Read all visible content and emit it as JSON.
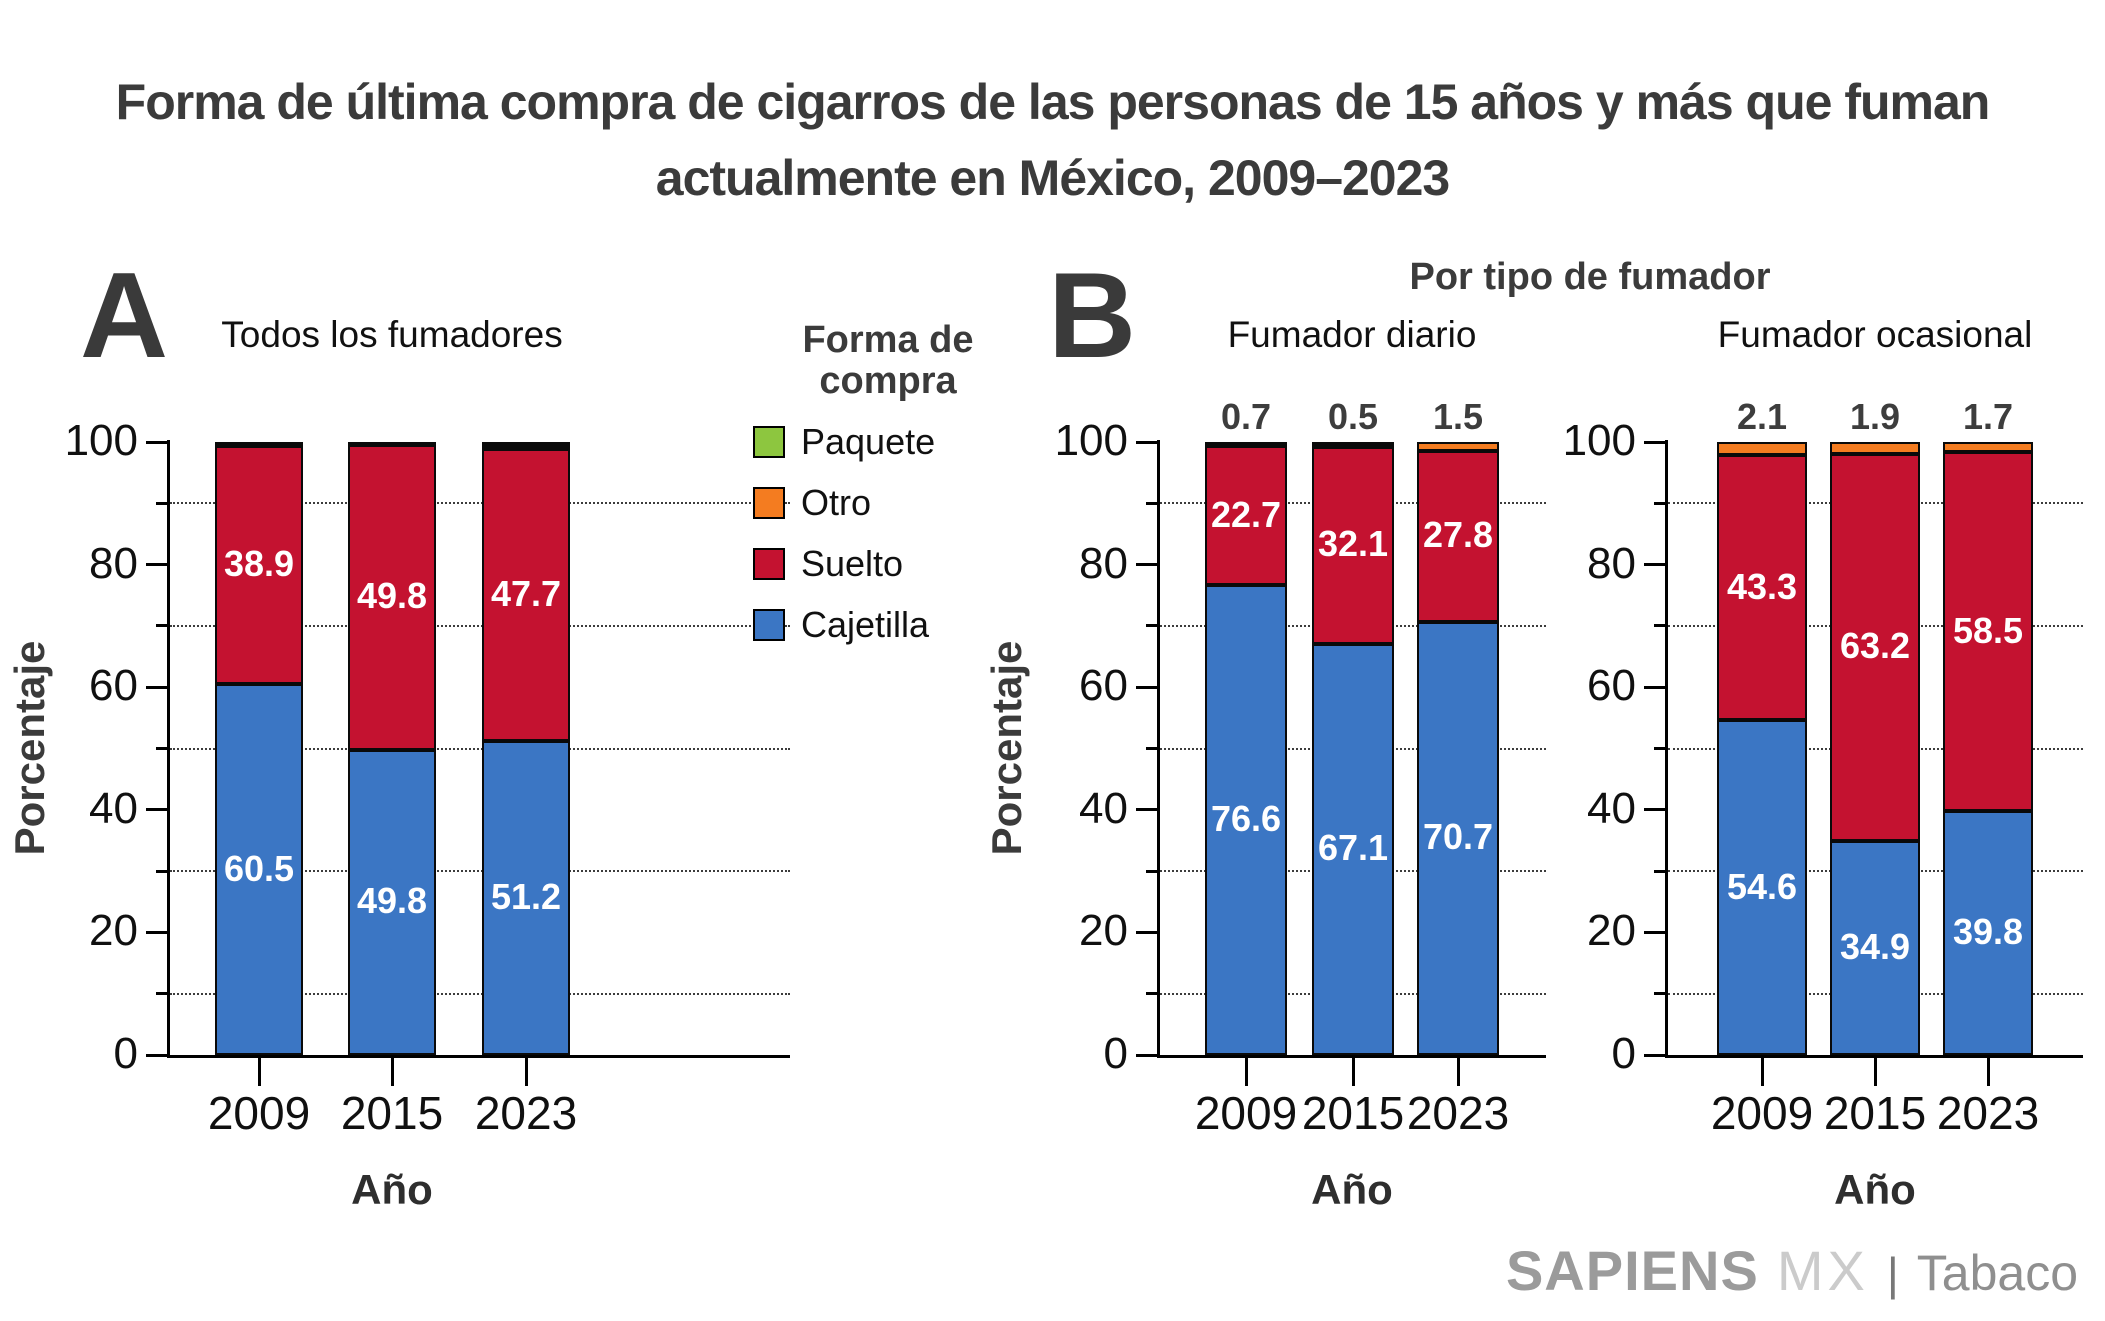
{
  "title": {
    "line1": "Forma de última compra de cigarros de las personas de 15 años y más que fuman",
    "line2": "actualmente en México, 2009–2023"
  },
  "colors": {
    "cajetilla": "#3B76C4",
    "suelto": "#C41230",
    "otro": "#F47C20",
    "paquete": "#8DC63F",
    "title_text": "#3B3B3B",
    "axis_text": "#101010",
    "bar_label_text": "#FFFFFF",
    "top_label_text": "#3D3D3D",
    "logo_primary": "#9B9B9B",
    "logo_secondary": "#CBCBCB",
    "logo_accent": "#8F8F8F"
  },
  "axes": {
    "y_label": "Porcentaje",
    "x_label": "Año",
    "y_ticks": [
      "0",
      "20",
      "40",
      "60",
      "80",
      "100"
    ],
    "minor_gridlines": [
      10,
      30,
      50,
      70,
      90
    ],
    "ylim": [
      0,
      100
    ]
  },
  "panels": {
    "a": {
      "letter": "A"
    },
    "b": {
      "letter": "B",
      "header": "Por tipo de fumador"
    }
  },
  "legend": {
    "title_line1": "Forma de",
    "title_line2": "compra",
    "items": [
      {
        "label": "Paquete",
        "color_key": "paquete"
      },
      {
        "label": "Otro",
        "color_key": "otro"
      },
      {
        "label": "Suelto",
        "color_key": "suelto"
      },
      {
        "label": "Cajetilla",
        "color_key": "cajetilla"
      }
    ]
  },
  "footer": {
    "brand": "SAPIENS",
    "brand2": "MX",
    "separator": "|",
    "tag": "Tabaco"
  },
  "chart_data": [
    {
      "type": "bar",
      "stacked": true,
      "panel": "A",
      "title": "Todos los fumadores",
      "x": [
        "2009",
        "2015",
        "2023"
      ],
      "xlabel": "Año",
      "ylabel": "Porcentaje",
      "ylim": [
        0,
        100
      ],
      "grid": "dotted minor lines at 10,30,50,70,90",
      "legend_position": "right of panel A",
      "series": [
        {
          "name": "Cajetilla",
          "color_key": "cajetilla",
          "values": [
            60.5,
            49.8,
            51.2
          ],
          "labels_shown": true
        },
        {
          "name": "Suelto",
          "color_key": "suelto",
          "values": [
            38.9,
            49.8,
            47.7
          ],
          "labels_shown": true
        },
        {
          "name": "Otro",
          "color_key": "otro",
          "values": [
            0.3,
            0.2,
            0.6
          ],
          "labels_shown": false,
          "estimated": true
        },
        {
          "name": "Paquete",
          "color_key": "paquete",
          "values": [
            0.3,
            0.2,
            0.5
          ],
          "labels_shown": false,
          "estimated": true
        }
      ],
      "top_labels": null
    },
    {
      "type": "bar",
      "stacked": true,
      "panel": "B-left",
      "title": "Fumador diario",
      "x": [
        "2009",
        "2015",
        "2023"
      ],
      "xlabel": "Año",
      "ylabel": "Porcentaje",
      "ylim": [
        0,
        100
      ],
      "series": [
        {
          "name": "Cajetilla",
          "color_key": "cajetilla",
          "values": [
            76.6,
            67.1,
            70.7
          ],
          "labels_shown": true
        },
        {
          "name": "Suelto",
          "color_key": "suelto",
          "values": [
            22.7,
            32.1,
            27.8
          ],
          "labels_shown": true
        },
        {
          "name": "Otro",
          "color_key": "otro",
          "values": [
            0.7,
            0.5,
            1.5
          ],
          "labels_shown": false
        },
        {
          "name": "Paquete",
          "color_key": "paquete",
          "values": [
            0,
            0.3,
            0
          ],
          "labels_shown": false,
          "estimated": true
        }
      ],
      "top_labels": [
        "0.7",
        "0.5",
        "1.5"
      ],
      "top_labels_series": "Otro"
    },
    {
      "type": "bar",
      "stacked": true,
      "panel": "B-right",
      "title": "Fumador ocasional",
      "x": [
        "2009",
        "2015",
        "2023"
      ],
      "xlabel": "Año",
      "ylabel": "Porcentaje",
      "ylim": [
        0,
        100
      ],
      "series": [
        {
          "name": "Cajetilla",
          "color_key": "cajetilla",
          "values": [
            54.6,
            34.9,
            39.8
          ],
          "labels_shown": true
        },
        {
          "name": "Suelto",
          "color_key": "suelto",
          "values": [
            43.3,
            63.2,
            58.5
          ],
          "labels_shown": true
        },
        {
          "name": "Otro",
          "color_key": "otro",
          "values": [
            2.1,
            1.9,
            1.7
          ],
          "labels_shown": false
        }
      ],
      "top_labels": [
        "2.1",
        "1.9",
        "1.7"
      ],
      "top_labels_series": "Otro"
    }
  ]
}
